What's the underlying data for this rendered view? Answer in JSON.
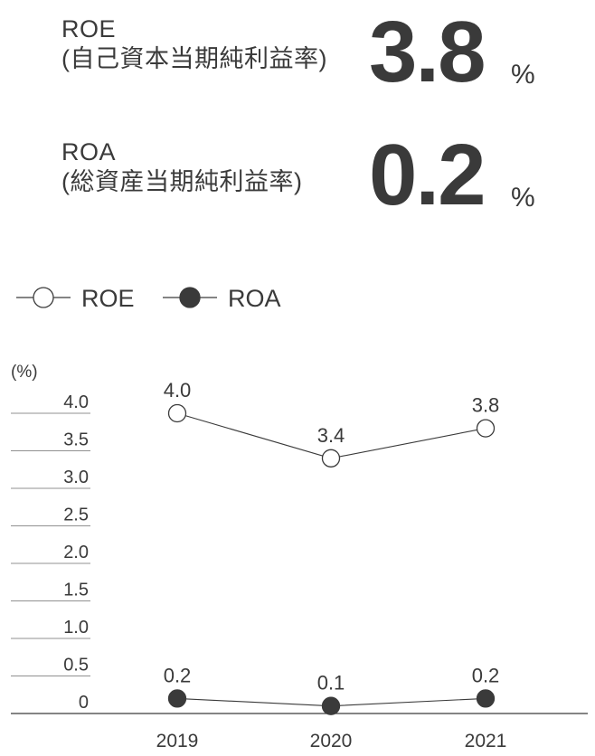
{
  "kpis": {
    "roe": {
      "name": "ROE",
      "desc": "(自己資本当期純利益率)",
      "value": "3.8",
      "unit": "%"
    },
    "roa": {
      "name": "ROA",
      "desc": "(総資産当期純利益率)",
      "value": "0.2",
      "unit": "%"
    }
  },
  "chart_data": {
    "type": "line",
    "unit_label": "(%)",
    "categories": [
      "2019",
      "2020",
      "2021"
    ],
    "ylim": [
      0,
      4.0
    ],
    "yticks": [
      {
        "value": 0,
        "label": "0"
      },
      {
        "value": 0.5,
        "label": "0.5"
      },
      {
        "value": 1.0,
        "label": "1.0"
      },
      {
        "value": 1.5,
        "label": "1.5"
      },
      {
        "value": 2.0,
        "label": "2.0"
      },
      {
        "value": 2.5,
        "label": "2.5"
      },
      {
        "value": 3.0,
        "label": "3.0"
      },
      {
        "value": 3.5,
        "label": "3.5"
      },
      {
        "value": 4.0,
        "label": "4.0"
      }
    ],
    "legend_position": "top-left",
    "series": [
      {
        "name": "ROE",
        "marker": "open-circle",
        "values": [
          4.0,
          3.4,
          3.8
        ],
        "labels": [
          "4.0",
          "3.4",
          "3.8"
        ]
      },
      {
        "name": "ROA",
        "marker": "filled-circle",
        "values": [
          0.2,
          0.1,
          0.2
        ],
        "labels": [
          "0.2",
          "0.1",
          "0.2"
        ]
      }
    ],
    "colors": {
      "text": "#3a3a3a",
      "line": "#3a3a3a",
      "grid": "#6b6b6b",
      "marker_fill_open": "#ffffff",
      "marker_fill_solid": "#3a3a3a"
    }
  }
}
